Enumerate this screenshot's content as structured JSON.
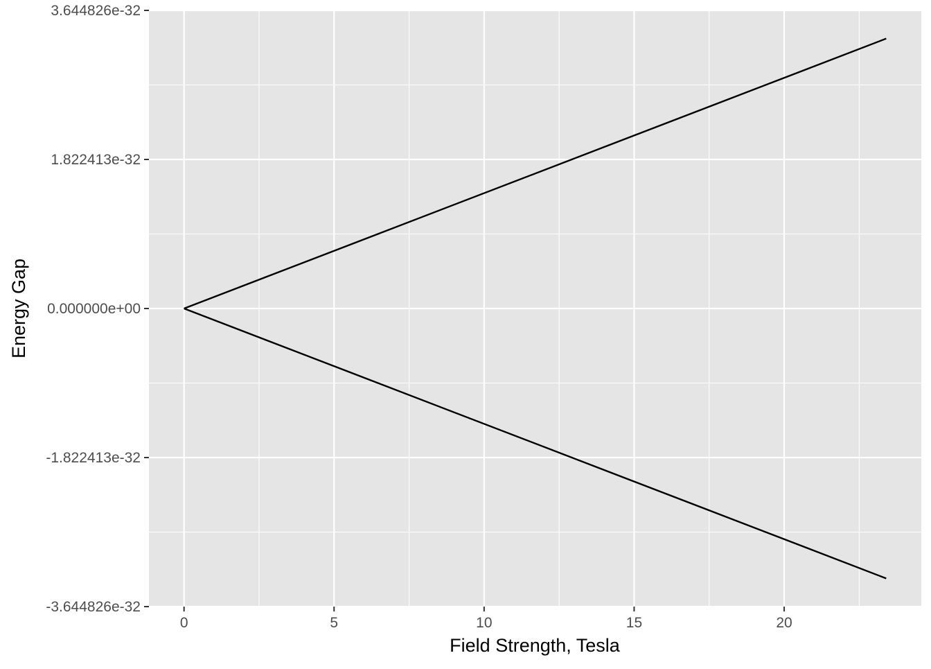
{
  "chart_data": {
    "type": "line",
    "title": "",
    "xlabel": "Field Strength, Tesla",
    "ylabel": "Energy Gap",
    "xlim": [
      -1.17,
      24.57
    ],
    "ylim": [
      -3.644826e-32,
      3.644826e-32
    ],
    "x_ticks": [
      0,
      5,
      10,
      15,
      20
    ],
    "x_tick_labels": [
      "0",
      "5",
      "10",
      "15",
      "20"
    ],
    "y_ticks": [
      -3.644826e-32,
      -1.822413e-32,
      0,
      1.822413e-32,
      3.644826e-32
    ],
    "y_tick_labels": [
      "-3.644826e-32",
      "-1.822413e-32",
      "0.000000e+00",
      "1.822413e-32",
      "3.644826e-32"
    ],
    "grid": true,
    "series": [
      {
        "x": [
          0,
          23.4
        ],
        "values": [
          0,
          3.3e-32
        ]
      },
      {
        "x": [
          0,
          23.4
        ],
        "values": [
          0,
          -3.3e-32
        ]
      }
    ],
    "colors": {
      "panel": "#e5e5e5",
      "grid": "#ffffff",
      "line": "#000000",
      "text": "#4d4d4d",
      "title_text": "#000000"
    }
  }
}
